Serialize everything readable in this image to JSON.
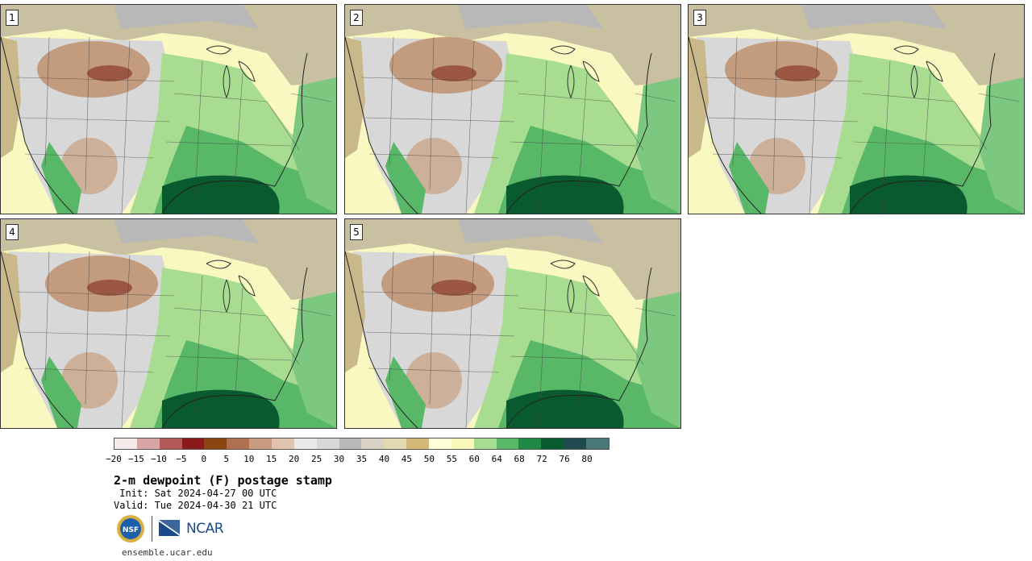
{
  "panels": [
    {
      "label": "1"
    },
    {
      "label": "2"
    },
    {
      "label": "3"
    },
    {
      "label": "4"
    },
    {
      "label": "5"
    }
  ],
  "colorbar": {
    "colors": [
      "#f6e9e9",
      "#d9a4a4",
      "#b45a5a",
      "#8c1a1a",
      "#8b4513",
      "#b07050",
      "#c89a80",
      "#e0c4b0",
      "#e8e8e8",
      "#d8d8d8",
      "#b8b8b8",
      "#d8d2c4",
      "#e4d8b0",
      "#d4b878",
      "#ffffd8",
      "#f8f8b8",
      "#a8dc90",
      "#58b868",
      "#1f8a48",
      "#0a5a30",
      "#1e4a50",
      "#4a7878"
    ],
    "ticks": [
      "−20",
      "−15",
      "−10",
      "−5",
      "0",
      "5",
      "10",
      "15",
      "20",
      "25",
      "30",
      "35",
      "40",
      "45",
      "50",
      "55",
      "60",
      "64",
      "68",
      "72",
      "76",
      "80"
    ]
  },
  "title": "2-m dewpoint (F) postage stamp",
  "init": " Init: Sat 2024-04-27 00 UTC",
  "valid": "Valid: Tue 2024-04-30 21 UTC",
  "logos": {
    "nsf": "NSF",
    "ncar": "NCAR"
  },
  "site": "ensemble.ucar.edu"
}
